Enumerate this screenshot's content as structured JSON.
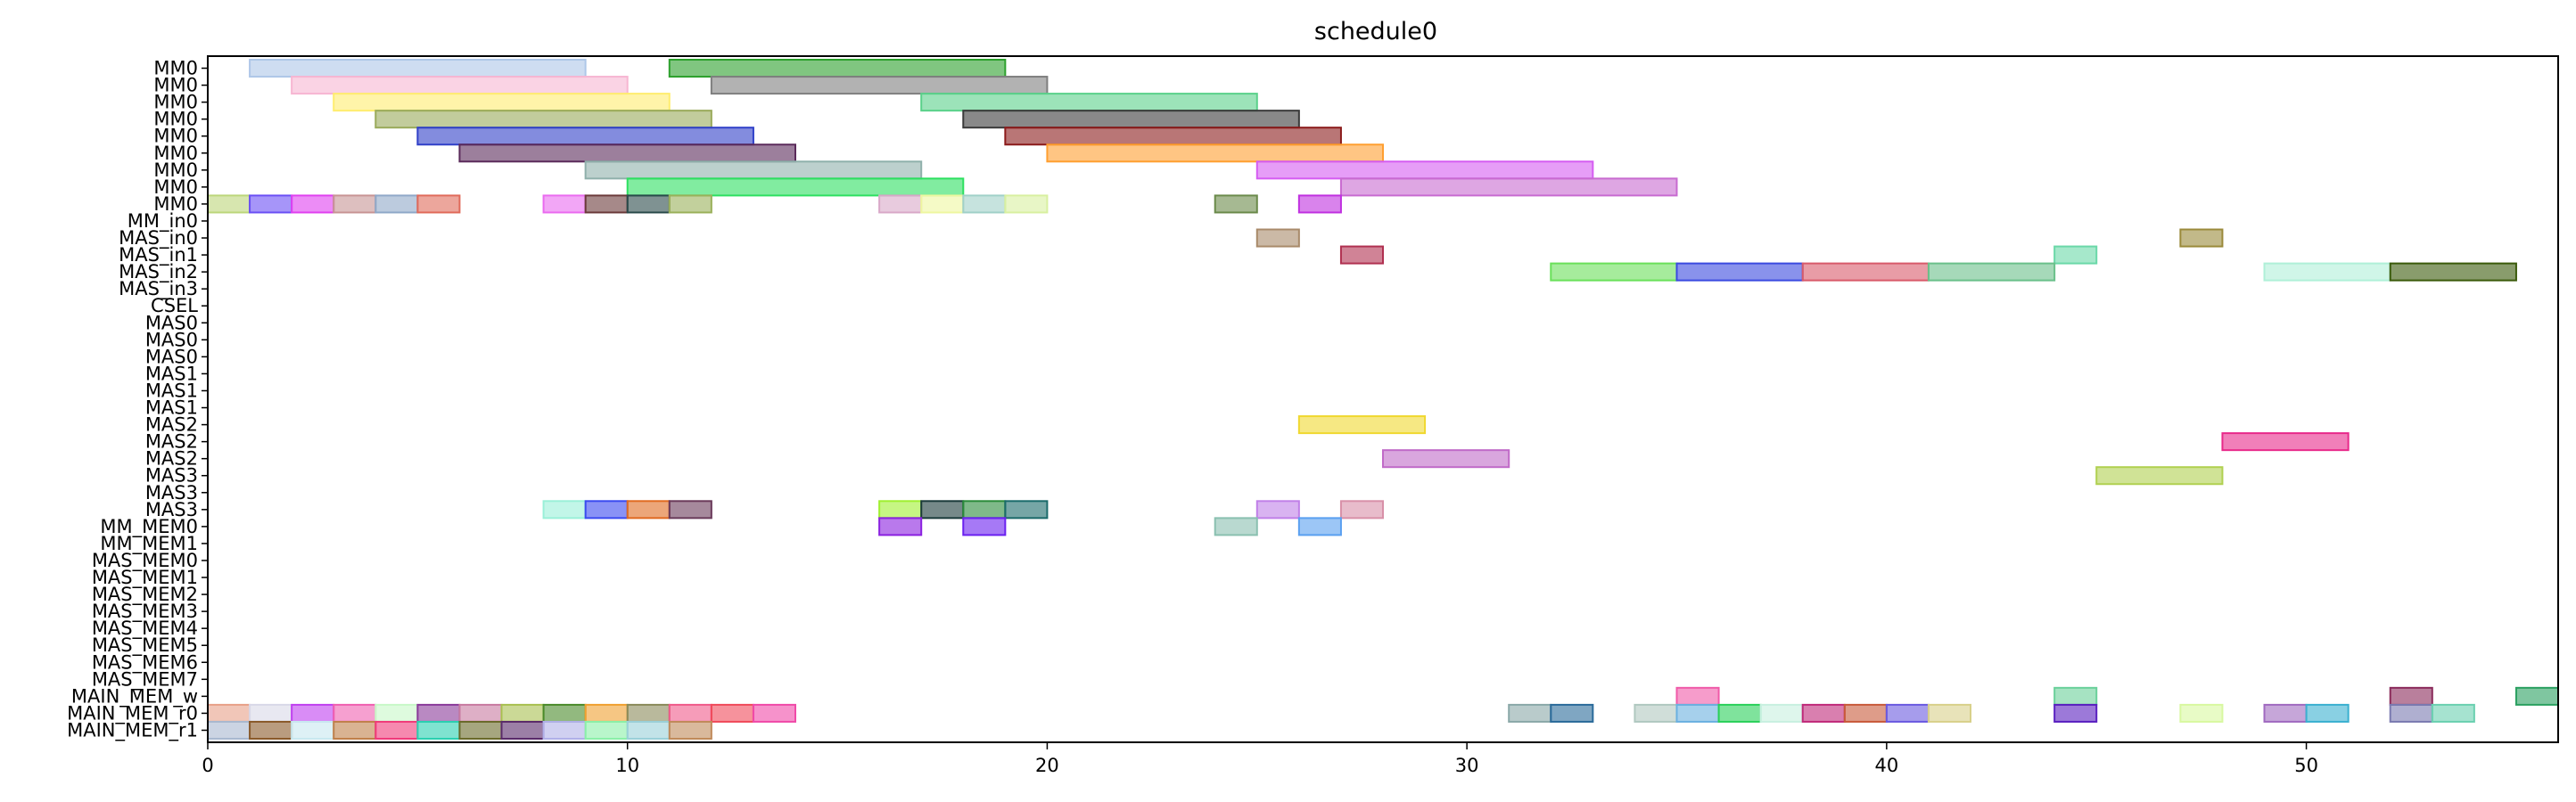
{
  "chart_data": {
    "type": "gantt",
    "title": "schedule0",
    "xlim": [
      0,
      56
    ],
    "xticks": [
      0,
      10,
      20,
      30,
      40,
      50
    ],
    "grid": false,
    "rows": [
      "MM0",
      "MM0",
      "MM0",
      "MM0",
      "MM0",
      "MM0",
      "MM0",
      "MM0",
      "MM0",
      "MM_in0",
      "MAS_in0",
      "MAS_in1",
      "MAS_in2",
      "MAS_in3",
      "CSEL",
      "MAS0",
      "MAS0",
      "MAS0",
      "MAS1",
      "MAS1",
      "MAS1",
      "MAS2",
      "MAS2",
      "MAS2",
      "MAS3",
      "MAS3",
      "MAS3",
      "MM_MEM0",
      "MM_MEM1",
      "MAS_MEM0",
      "MAS_MEM1",
      "MAS_MEM2",
      "MAS_MEM3",
      "MAS_MEM4",
      "MAS_MEM5",
      "MAS_MEM6",
      "MAS_MEM7",
      "MAIN_MEM_w",
      "MAIN_MEM_r0",
      "MAIN_MEM_r1"
    ],
    "tasks": [
      {
        "row": 0,
        "start": 1,
        "end": 9,
        "color": "#aec7e8"
      },
      {
        "row": 0,
        "start": 11,
        "end": 19,
        "color": "#2ca02c"
      },
      {
        "row": 1,
        "start": 2,
        "end": 10,
        "color": "#f7b6d2"
      },
      {
        "row": 1,
        "start": 12,
        "end": 20,
        "color": "#7f7f7f"
      },
      {
        "row": 2,
        "start": 3,
        "end": 11,
        "color": "#ffed6f"
      },
      {
        "row": 2,
        "start": 17,
        "end": 25,
        "color": "#5ad18a"
      },
      {
        "row": 3,
        "start": 4,
        "end": 12,
        "color": "#9aaa5a"
      },
      {
        "row": 3,
        "start": 18,
        "end": 26,
        "color": "#3a3a3a"
      },
      {
        "row": 4,
        "start": 5,
        "end": 13,
        "color": "#3040c8"
      },
      {
        "row": 4,
        "start": 19,
        "end": 27,
        "color": "#8b1a1a"
      },
      {
        "row": 5,
        "start": 6,
        "end": 14,
        "color": "#5a2a5a"
      },
      {
        "row": 5,
        "start": 20,
        "end": 28,
        "color": "#ff9f30"
      },
      {
        "row": 6,
        "start": 9,
        "end": 17,
        "color": "#8fb0ab"
      },
      {
        "row": 6,
        "start": 25,
        "end": 33,
        "color": "#d55cf2"
      },
      {
        "row": 7,
        "start": 10,
        "end": 18,
        "color": "#2de060"
      },
      {
        "row": 7,
        "start": 27,
        "end": 35,
        "color": "#c86bd0"
      },
      {
        "row": 8,
        "start": 0,
        "end": 1,
        "color": "#bcd67a"
      },
      {
        "row": 8,
        "start": 1,
        "end": 2,
        "color": "#6a4ff5"
      },
      {
        "row": 8,
        "start": 2,
        "end": 3,
        "color": "#e040f0"
      },
      {
        "row": 8,
        "start": 3,
        "end": 4,
        "color": "#c79494"
      },
      {
        "row": 8,
        "start": 4,
        "end": 5,
        "color": "#8fa8c8"
      },
      {
        "row": 8,
        "start": 5,
        "end": 6,
        "color": "#e06a5a"
      },
      {
        "row": 8,
        "start": 8,
        "end": 9,
        "color": "#ea6af0"
      },
      {
        "row": 8,
        "start": 9,
        "end": 10,
        "color": "#6a3a3a"
      },
      {
        "row": 8,
        "start": 10,
        "end": 11,
        "color": "#2a4a4a"
      },
      {
        "row": 8,
        "start": 11,
        "end": 12,
        "color": "#9ab05a"
      },
      {
        "row": 8,
        "start": 16,
        "end": 17,
        "color": "#d8a8c8"
      },
      {
        "row": 8,
        "start": 17,
        "end": 18,
        "color": "#eef7a0"
      },
      {
        "row": 8,
        "start": 18,
        "end": 19,
        "color": "#a0d0c8"
      },
      {
        "row": 8,
        "start": 19,
        "end": 20,
        "color": "#d8f0a0"
      },
      {
        "row": 8,
        "start": 24,
        "end": 25,
        "color": "#6a8a4a"
      },
      {
        "row": 8,
        "start": 26,
        "end": 27,
        "color": "#c030e0"
      },
      {
        "row": 10,
        "start": 25,
        "end": 26,
        "color": "#a88a6a"
      },
      {
        "row": 10,
        "start": 47,
        "end": 48,
        "color": "#9a8a3a"
      },
      {
        "row": 11,
        "start": 27,
        "end": 28,
        "color": "#b03050"
      },
      {
        "row": 11,
        "start": 44,
        "end": 45,
        "color": "#6ad8a8"
      },
      {
        "row": 12,
        "start": 32,
        "end": 35,
        "color": "#6ae05a"
      },
      {
        "row": 12,
        "start": 35,
        "end": 38,
        "color": "#3a4ae0"
      },
      {
        "row": 12,
        "start": 38,
        "end": 41,
        "color": "#d85a6a"
      },
      {
        "row": 12,
        "start": 41,
        "end": 44,
        "color": "#6ac08a"
      },
      {
        "row": 12,
        "start": 49,
        "end": 52,
        "color": "#b0f0d8"
      },
      {
        "row": 12,
        "start": 52,
        "end": 55,
        "color": "#3a5a0a"
      },
      {
        "row": 21,
        "start": 26,
        "end": 29,
        "color": "#f0d830"
      },
      {
        "row": 22,
        "start": 48,
        "end": 51,
        "color": "#e82a8a"
      },
      {
        "row": 23,
        "start": 28,
        "end": 31,
        "color": "#c06ac8"
      },
      {
        "row": 24,
        "start": 45,
        "end": 48,
        "color": "#b0d050"
      },
      {
        "row": 26,
        "start": 8,
        "end": 9,
        "color": "#9af0d8"
      },
      {
        "row": 26,
        "start": 9,
        "end": 10,
        "color": "#3a4af0"
      },
      {
        "row": 26,
        "start": 10,
        "end": 11,
        "color": "#e06a20"
      },
      {
        "row": 26,
        "start": 11,
        "end": 12,
        "color": "#6a3a5a"
      },
      {
        "row": 26,
        "start": 16,
        "end": 17,
        "color": "#a0f030"
      },
      {
        "row": 26,
        "start": 17,
        "end": 18,
        "color": "#1a3a3a"
      },
      {
        "row": 26,
        "start": 18,
        "end": 19,
        "color": "#2a8a3a"
      },
      {
        "row": 26,
        "start": 19,
        "end": 20,
        "color": "#1a6a6a"
      },
      {
        "row": 26,
        "start": 25,
        "end": 26,
        "color": "#c080e8"
      },
      {
        "row": 26,
        "start": 27,
        "end": 28,
        "color": "#d890a8"
      },
      {
        "row": 27,
        "start": 16,
        "end": 17,
        "color": "#8a20e0"
      },
      {
        "row": 27,
        "start": 18,
        "end": 19,
        "color": "#6a20f0"
      },
      {
        "row": 27,
        "start": 24,
        "end": 25,
        "color": "#8ac0b0"
      },
      {
        "row": 27,
        "start": 26,
        "end": 27,
        "color": "#5aa0f0"
      },
      {
        "row": 37,
        "start": 35,
        "end": 36,
        "color": "#f05aa8"
      },
      {
        "row": 37,
        "start": 44,
        "end": 45,
        "color": "#6ad09a"
      },
      {
        "row": 37,
        "start": 52,
        "end": 53,
        "color": "#8a2a5a"
      },
      {
        "row": 37,
        "start": 55,
        "end": 56,
        "color": "#2aa060"
      },
      {
        "row": 38,
        "start": 0,
        "end": 1,
        "color": "#e8a088"
      },
      {
        "row": 38,
        "start": 1,
        "end": 2,
        "color": "#d8d8e8"
      },
      {
        "row": 38,
        "start": 2,
        "end": 3,
        "color": "#c040f0"
      },
      {
        "row": 38,
        "start": 3,
        "end": 4,
        "color": "#f060b0"
      },
      {
        "row": 38,
        "start": 4,
        "end": 5,
        "color": "#c8f8c8"
      },
      {
        "row": 38,
        "start": 5,
        "end": 6,
        "color": "#8a3a9a"
      },
      {
        "row": 38,
        "start": 6,
        "end": 7,
        "color": "#c87aa0"
      },
      {
        "row": 38,
        "start": 7,
        "end": 8,
        "color": "#a8c050"
      },
      {
        "row": 38,
        "start": 8,
        "end": 9,
        "color": "#4a8a2a"
      },
      {
        "row": 38,
        "start": 9,
        "end": 10,
        "color": "#f0a030"
      },
      {
        "row": 38,
        "start": 10,
        "end": 11,
        "color": "#8a8a5a"
      },
      {
        "row": 38,
        "start": 11,
        "end": 12,
        "color": "#f05a8a"
      },
      {
        "row": 38,
        "start": 12,
        "end": 13,
        "color": "#f04a5a"
      },
      {
        "row": 38,
        "start": 13,
        "end": 14,
        "color": "#f04aa8"
      },
      {
        "row": 38,
        "start": 31,
        "end": 32,
        "color": "#8aa8a8"
      },
      {
        "row": 38,
        "start": 32,
        "end": 33,
        "color": "#2a6a9a"
      },
      {
        "row": 38,
        "start": 34,
        "end": 35,
        "color": "#b0c8c0"
      },
      {
        "row": 38,
        "start": 35,
        "end": 36,
        "color": "#6ab0e0"
      },
      {
        "row": 38,
        "start": 36,
        "end": 37,
        "color": "#2ad05a"
      },
      {
        "row": 38,
        "start": 37,
        "end": 38,
        "color": "#c8f0e0"
      },
      {
        "row": 38,
        "start": 38,
        "end": 39,
        "color": "#c02a7a"
      },
      {
        "row": 38,
        "start": 39,
        "end": 40,
        "color": "#c85a3a"
      },
      {
        "row": 38,
        "start": 40,
        "end": 41,
        "color": "#6a5ae0"
      },
      {
        "row": 38,
        "start": 41,
        "end": 42,
        "color": "#d8d08a"
      },
      {
        "row": 38,
        "start": 44,
        "end": 45,
        "color": "#5a20c0"
      },
      {
        "row": 38,
        "start": 47,
        "end": 48,
        "color": "#d8f8a0"
      },
      {
        "row": 38,
        "start": 49,
        "end": 50,
        "color": "#a06ac0"
      },
      {
        "row": 38,
        "start": 50,
        "end": 51,
        "color": "#3ab0d0"
      },
      {
        "row": 38,
        "start": 52,
        "end": 53,
        "color": "#7a7ab0"
      },
      {
        "row": 38,
        "start": 53,
        "end": 54,
        "color": "#6ad0b0"
      },
      {
        "row": 39,
        "start": 0,
        "end": 1,
        "color": "#a8b8d0"
      },
      {
        "row": 39,
        "start": 1,
        "end": 2,
        "color": "#8a5a2a"
      },
      {
        "row": 39,
        "start": 2,
        "end": 3,
        "color": "#c8e8f0"
      },
      {
        "row": 39,
        "start": 3,
        "end": 4,
        "color": "#c0804a"
      },
      {
        "row": 39,
        "start": 4,
        "end": 5,
        "color": "#f03a7a"
      },
      {
        "row": 39,
        "start": 5,
        "end": 6,
        "color": "#2ad0b0"
      },
      {
        "row": 39,
        "start": 6,
        "end": 7,
        "color": "#6a6a2a"
      },
      {
        "row": 39,
        "start": 7,
        "end": 8,
        "color": "#5a2a6a"
      },
      {
        "row": 39,
        "start": 8,
        "end": 9,
        "color": "#b0b0e8"
      },
      {
        "row": 39,
        "start": 9,
        "end": 10,
        "color": "#8af0a8"
      },
      {
        "row": 39,
        "start": 10,
        "end": 11,
        "color": "#9ad0d8"
      },
      {
        "row": 39,
        "start": 11,
        "end": 12,
        "color": "#c08a5a"
      }
    ]
  }
}
